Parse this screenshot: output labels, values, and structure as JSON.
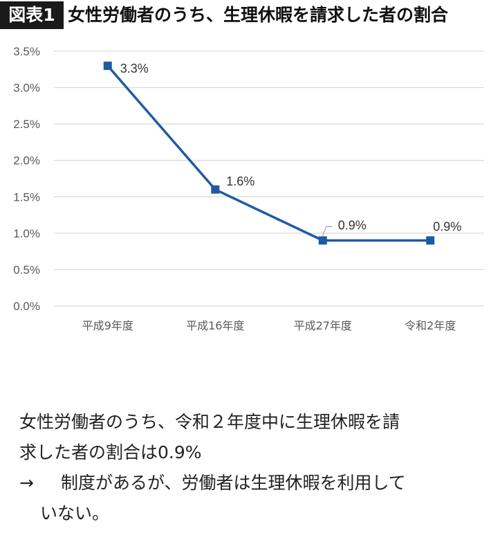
{
  "header": {
    "badge": "図表1",
    "title": "女性労働者のうち、生理休暇を請求した者の割合"
  },
  "chart_data": {
    "type": "line",
    "categories": [
      "平成9年度",
      "平成16年度",
      "平成27年度",
      "令和2年度"
    ],
    "series": [
      {
        "values": [
          3.3,
          1.6,
          0.9,
          0.9
        ],
        "color": "#1f5aa6"
      }
    ],
    "data_labels": [
      "3.3%",
      "1.6%",
      "0.9%",
      "0.9%"
    ],
    "yticks": [
      "0.0%",
      "0.5%",
      "1.0%",
      "1.5%",
      "2.0%",
      "2.5%",
      "3.0%",
      "3.5%"
    ],
    "ylim": [
      0,
      3.5
    ],
    "grid": true,
    "gridline_color": "#d9d9d9",
    "axis_text_color": "#595959"
  },
  "note": {
    "line1": "女性労働者のうち、令和２年度中に生理休暇を請",
    "line2": "求した者の割合は0.9%",
    "arrow": "→",
    "line3": "制度があるが、労働者は生理休暇を利用して",
    "line4": "いない。"
  }
}
